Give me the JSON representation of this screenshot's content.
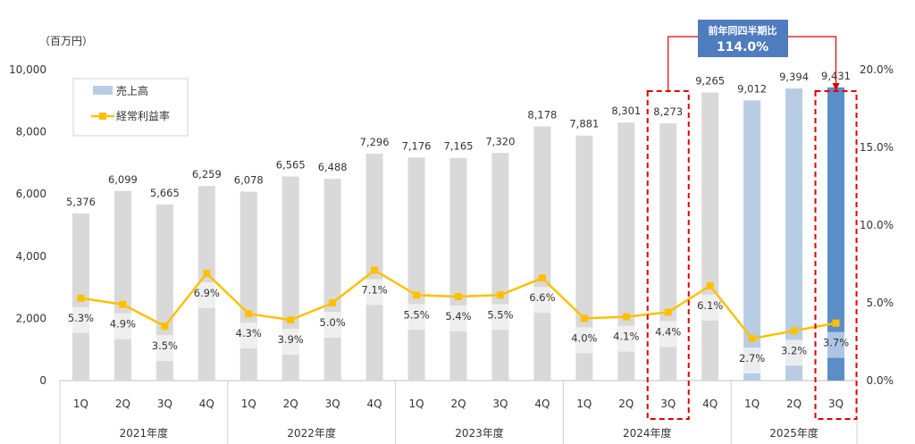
{
  "chart_data": {
    "type": "bar+line",
    "unit_label": "（百万円）",
    "left_axis": {
      "min": 0,
      "max": 10000,
      "ticks": [
        "0",
        "2,000",
        "4,000",
        "6,000",
        "8,000",
        "10,000"
      ]
    },
    "right_axis": {
      "min": 0,
      "max": 20,
      "ticks": [
        "0.0%",
        "5.0%",
        "10.0%",
        "15.0%",
        "20.0%"
      ]
    },
    "categories": [
      "1Q",
      "2Q",
      "3Q",
      "4Q",
      "1Q",
      "2Q",
      "3Q",
      "4Q",
      "1Q",
      "2Q",
      "3Q",
      "4Q",
      "1Q",
      "2Q",
      "3Q",
      "4Q",
      "1Q",
      "2Q",
      "3Q"
    ],
    "years": [
      "2021年度",
      "2022年度",
      "2023年度",
      "2024年度",
      "2025年度"
    ],
    "series": [
      {
        "name": "売上高",
        "type": "bar",
        "values": [
          5376,
          6099,
          5665,
          6259,
          6078,
          6565,
          6488,
          7296,
          7176,
          7165,
          7320,
          8178,
          7881,
          8301,
          8273,
          9265,
          9012,
          9394,
          9431
        ],
        "labels": [
          "5,376",
          "6,099",
          "5,665",
          "6,259",
          "6,078",
          "6,565",
          "6,488",
          "7,296",
          "7,176",
          "7,165",
          "7,320",
          "8,178",
          "7,881",
          "8,301",
          "8,273",
          "9,265",
          "9,012",
          "9,394",
          "9,431"
        ]
      },
      {
        "name": "経常利益率",
        "type": "line",
        "values": [
          5.3,
          4.9,
          3.5,
          6.9,
          4.3,
          3.9,
          5.0,
          7.1,
          5.5,
          5.4,
          5.5,
          6.6,
          4.0,
          4.1,
          4.4,
          6.1,
          2.7,
          3.2,
          3.7
        ],
        "labels": [
          "5.3%",
          "4.9%",
          "3.5%",
          "6.9%",
          "4.3%",
          "3.9%",
          "5.0%",
          "7.1%",
          "5.5%",
          "5.4%",
          "5.5%",
          "6.6%",
          "4.0%",
          "4.1%",
          "4.4%",
          "6.1%",
          "2.7%",
          "3.2%",
          "3.7%"
        ]
      }
    ],
    "legend": {
      "sales": "売上高",
      "margin": "経常利益率"
    },
    "callout": {
      "title": "前年同四半期比",
      "value": "114.0%"
    },
    "highlight_indices": [
      14,
      18
    ],
    "colors": {
      "bar_grey": "#d9d9d9",
      "bar_2025": "#b8cce4",
      "bar_highlight": "#5b8dc9",
      "line": "#ffc000",
      "callout_box": "#4f7bbf",
      "callout_line": "#e00000",
      "label_band": "#f2f2f2"
    }
  }
}
